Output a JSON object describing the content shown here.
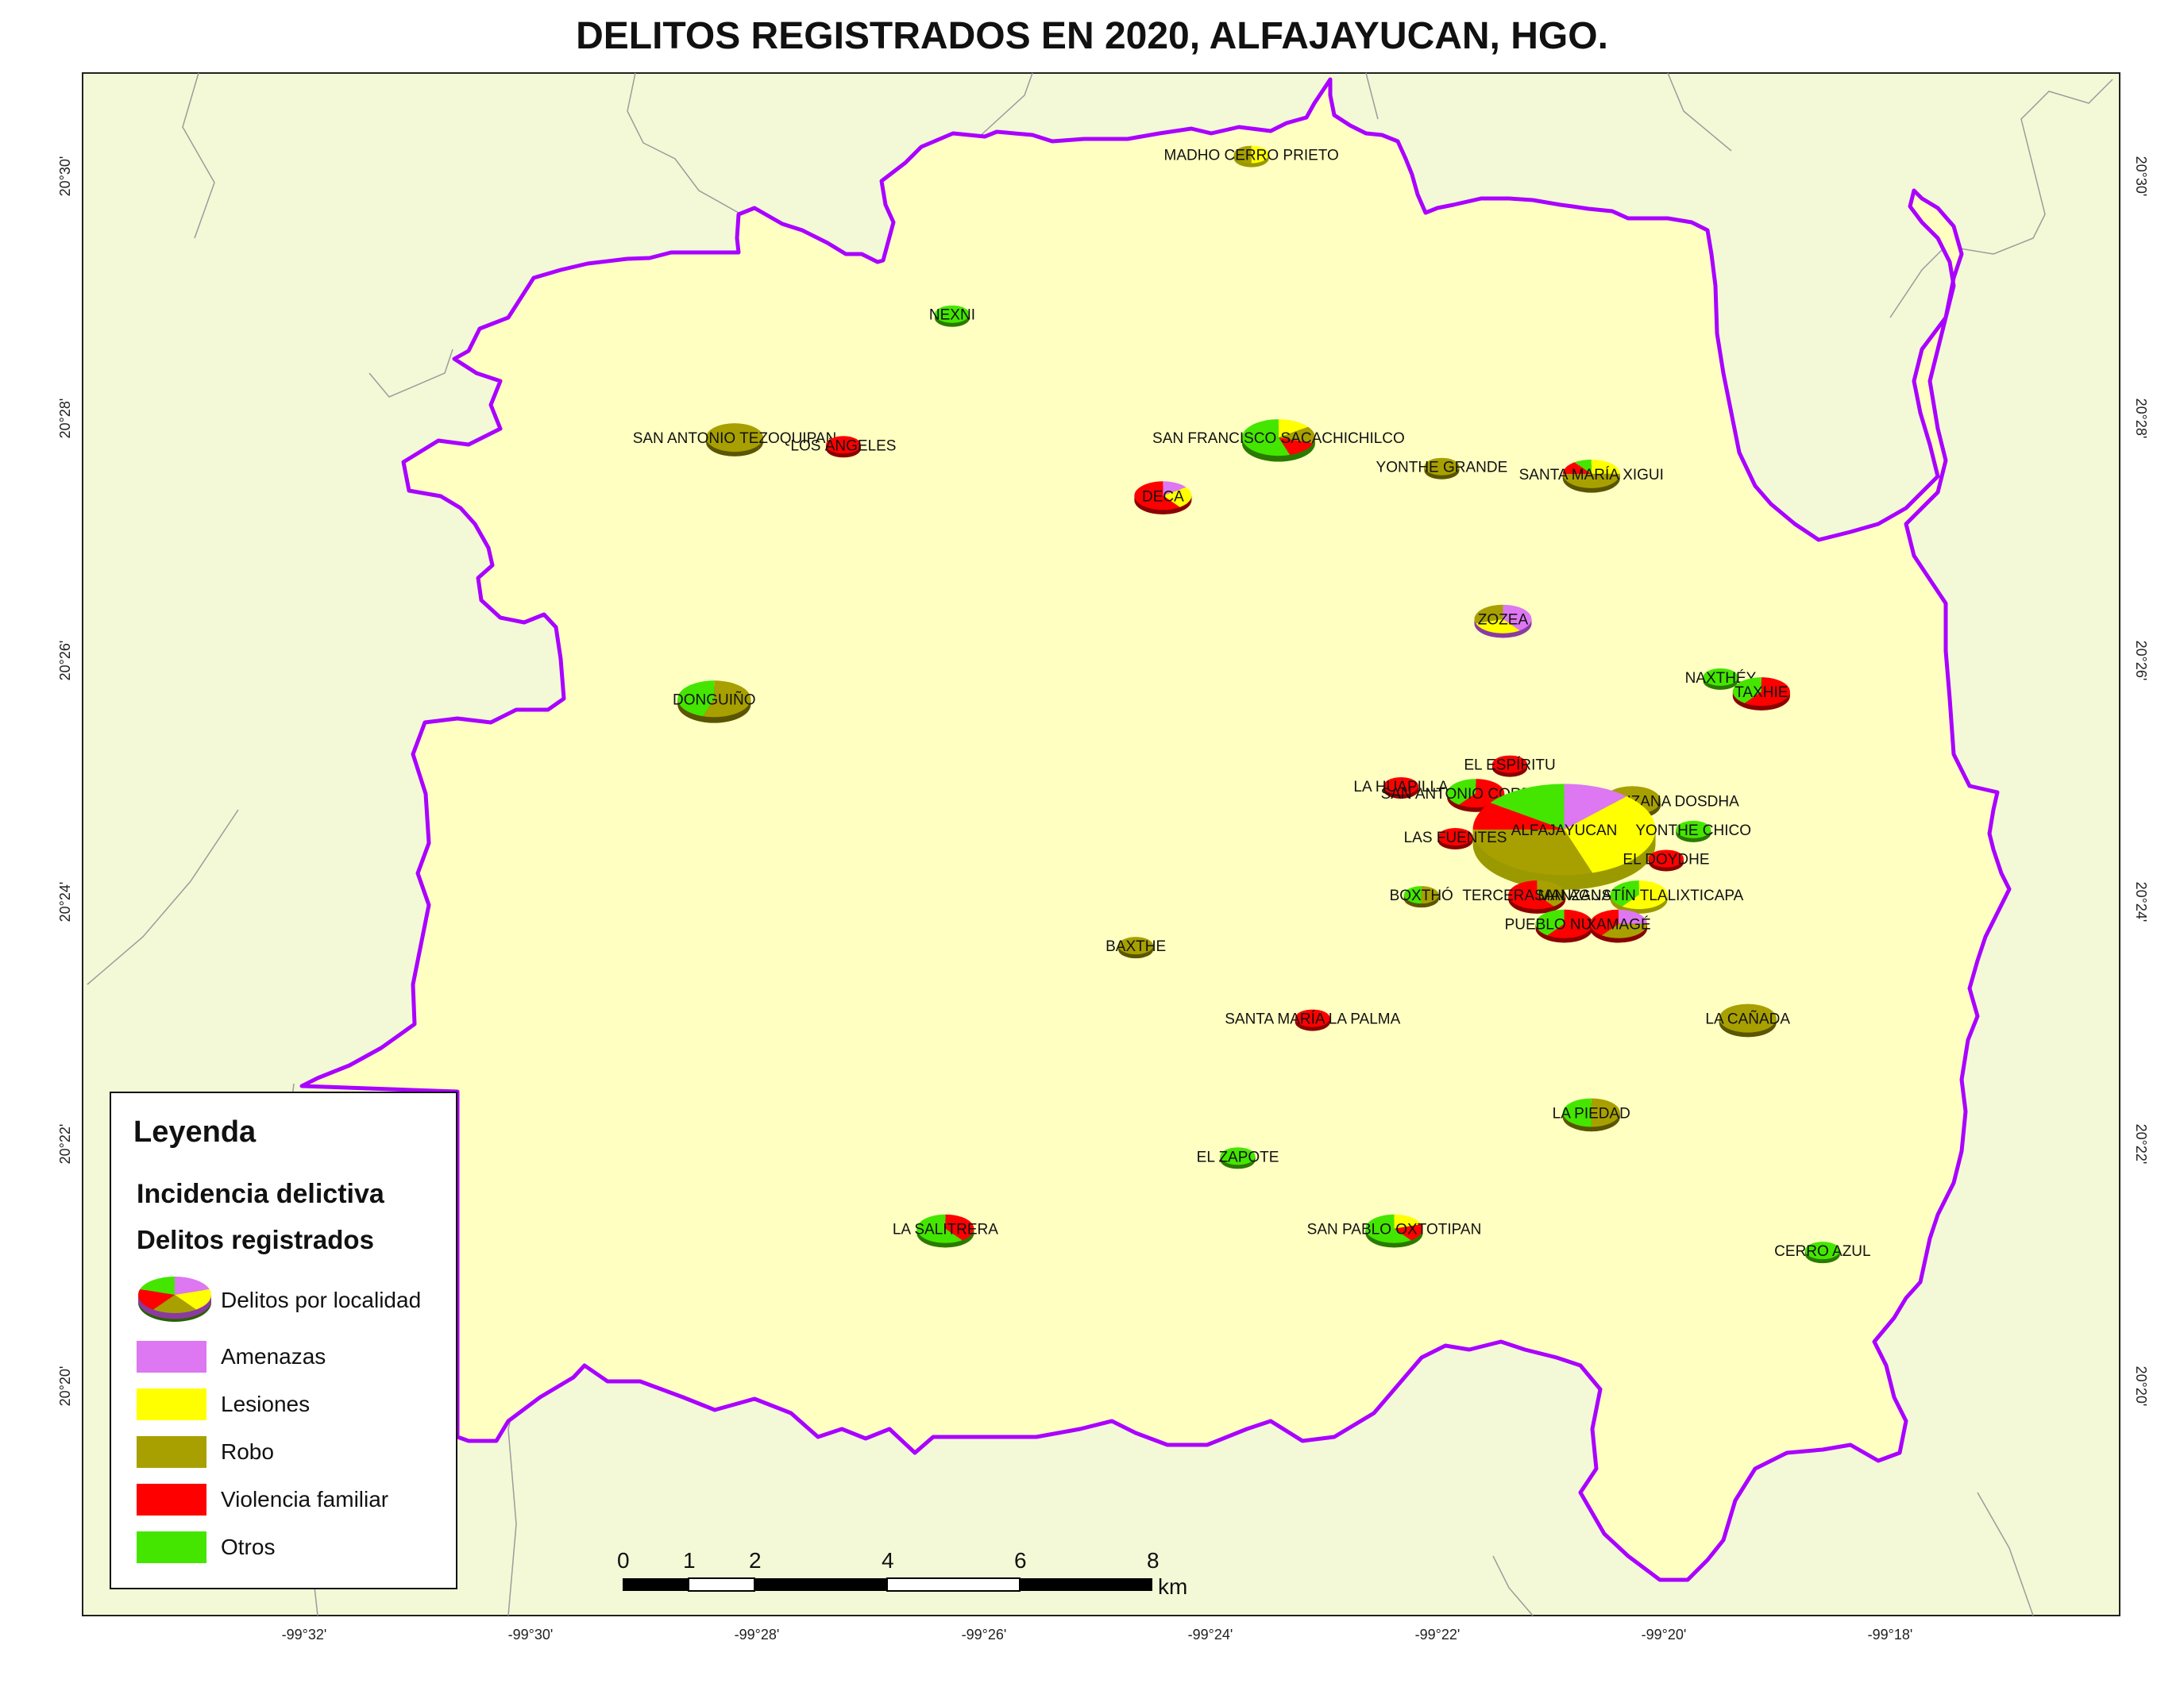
{
  "title": "DELITOS REGISTRADOS EN 2020, ALFAJAYUCAN, HGO.",
  "colors": {
    "amenazas": "#dd77f2",
    "lesiones": "#ffff00",
    "robo": "#a8a000",
    "violencia": "#ff0000",
    "otros": "#44e600",
    "municipio_fill": "#ffffc2",
    "outside_fill": "#f3f9d6",
    "border": "#aa00ff"
  },
  "coords": {
    "lon_labels": [
      "-99°32'",
      "-99°30'",
      "-99°28'",
      "-99°26'",
      "-99°24'",
      "-99°22'",
      "-99°20'",
      "-99°18'"
    ],
    "lat_labels": [
      "20°30'",
      "20°28'",
      "20°26'",
      "20°24'",
      "20°22'",
      "20°20'"
    ]
  },
  "localities": [
    {
      "name": "MADHO CERRO PRIETO",
      "lon": -99.394,
      "lat": 20.503,
      "size": 1,
      "shares": [
        0,
        0.5,
        0.5,
        0,
        0
      ]
    },
    {
      "name": "NEXNI",
      "lon": -99.438,
      "lat": 20.481,
      "size": 1,
      "shares": [
        0,
        0,
        0,
        0,
        1
      ]
    },
    {
      "name": "SAN FRANCISCO SACACHICHILCO",
      "lon": -99.39,
      "lat": 20.464,
      "size": 3,
      "shares": [
        0,
        0.15,
        0.15,
        0.15,
        0.55
      ]
    },
    {
      "name": "YONTHE GRANDE",
      "lon": -99.366,
      "lat": 20.46,
      "size": 1,
      "shares": [
        0,
        0,
        1,
        0,
        0
      ]
    },
    {
      "name": "SAN ANTONIO TEZOQUIPAN",
      "lon": -99.47,
      "lat": 20.464,
      "size": 2,
      "shares": [
        0,
        0,
        1,
        0,
        0
      ]
    },
    {
      "name": "LOS ÁNGELES",
      "lon": -99.454,
      "lat": 20.463,
      "size": 1,
      "shares": [
        0,
        0,
        0,
        1,
        0
      ]
    },
    {
      "name": "DECA",
      "lon": -99.407,
      "lat": 20.456,
      "size": 2,
      "shares": [
        0.15,
        0.25,
        0,
        0.6,
        0
      ]
    },
    {
      "name": "SANTA MARÍA XIGUI",
      "lon": -99.344,
      "lat": 20.459,
      "size": 2,
      "shares": [
        0,
        0.25,
        0.5,
        0.15,
        0.1
      ]
    },
    {
      "name": "ZOZEA",
      "lon": -99.357,
      "lat": 20.439,
      "size": 2,
      "shares": [
        0.4,
        0.3,
        0.3,
        0,
        0
      ]
    },
    {
      "name": "NAXTHÉY",
      "lon": -99.325,
      "lat": 20.431,
      "size": 1,
      "shares": [
        0,
        0,
        0,
        0,
        1
      ]
    },
    {
      "name": "DONGUIÑO",
      "lon": -99.473,
      "lat": 20.428,
      "size": 3,
      "shares": [
        0,
        0,
        0.55,
        0,
        0.45
      ]
    },
    {
      "name": "TAXHIE",
      "lon": -99.319,
      "lat": 20.429,
      "size": 2,
      "shares": [
        0,
        0,
        0,
        0.6,
        0.4
      ]
    },
    {
      "name": "EL ESPÍRITU",
      "lon": -99.356,
      "lat": 20.419,
      "size": 1,
      "shares": [
        0,
        0,
        0,
        1,
        0
      ]
    },
    {
      "name": "LA HUAPILLA",
      "lon": -99.372,
      "lat": 20.416,
      "size": 1,
      "shares": [
        0,
        0,
        0,
        1,
        0
      ]
    },
    {
      "name": "SAN ANTONIO CORRALES",
      "lon": -99.361,
      "lat": 20.415,
      "size": 2,
      "shares": [
        0,
        0,
        0,
        0.6,
        0.4
      ]
    },
    {
      "name": "PRIMERA MANZANA DOSDHA",
      "lon": -99.338,
      "lat": 20.414,
      "size": 2,
      "shares": [
        0,
        0,
        1,
        0,
        0
      ]
    },
    {
      "name": "ALFAJAYUCAN",
      "lon": -99.348,
      "lat": 20.41,
      "size": 10,
      "shares": [
        0.12,
        0.33,
        0.3,
        0.1,
        0.15
      ]
    },
    {
      "name": "LAS FUENTES",
      "lon": -99.364,
      "lat": 20.409,
      "size": 1,
      "shares": [
        0,
        0,
        0,
        1,
        0
      ]
    },
    {
      "name": "YONTHE CHICO",
      "lon": -99.329,
      "lat": 20.41,
      "size": 1,
      "shares": [
        0,
        0,
        0,
        0,
        1
      ]
    },
    {
      "name": "EL DOYDHE",
      "lon": -99.333,
      "lat": 20.406,
      "size": 1,
      "shares": [
        0,
        0,
        0,
        1,
        0
      ]
    },
    {
      "name": "BOXTHÓ",
      "lon": -99.369,
      "lat": 20.401,
      "size": 1,
      "shares": [
        0,
        0,
        0.5,
        0,
        0.5
      ]
    },
    {
      "name": "TERCERA MANZANA",
      "lon": -99.352,
      "lat": 20.401,
      "size": 2,
      "shares": [
        0,
        0,
        0.4,
        0.6,
        0
      ]
    },
    {
      "name": "SAN AGUSTÍN TLALIXTICAPA",
      "lon": -99.337,
      "lat": 20.401,
      "size": 2,
      "shares": [
        0,
        0.6,
        0,
        0,
        0.4
      ]
    },
    {
      "name": "PUEBLO NUEVO",
      "lon": -99.348,
      "lat": 20.397,
      "size": 2,
      "shares": [
        0,
        0,
        0,
        0.6,
        0.4
      ]
    },
    {
      "name": "XAMAGÉ",
      "lon": -99.34,
      "lat": 20.397,
      "size": 2,
      "shares": [
        0.25,
        0,
        0.35,
        0.4,
        0
      ]
    },
    {
      "name": "BAXTHE",
      "lon": -99.411,
      "lat": 20.394,
      "size": 1,
      "shares": [
        0,
        0,
        1,
        0,
        0
      ]
    },
    {
      "name": "SANTA MARÍA LA PALMA",
      "lon": -99.385,
      "lat": 20.384,
      "size": 1,
      "shares": [
        0,
        0,
        0,
        1,
        0
      ]
    },
    {
      "name": "LA CAÑADA",
      "lon": -99.321,
      "lat": 20.384,
      "size": 2,
      "shares": [
        0,
        0,
        1,
        0,
        0
      ]
    },
    {
      "name": "LA PIEDAD",
      "lon": -99.344,
      "lat": 20.371,
      "size": 2,
      "shares": [
        0,
        0,
        0.5,
        0,
        0.5
      ]
    },
    {
      "name": "EL ZAPOTE",
      "lon": -99.396,
      "lat": 20.365,
      "size": 1,
      "shares": [
        0,
        0,
        0,
        0,
        1
      ]
    },
    {
      "name": "LA SALITRERA",
      "lon": -99.439,
      "lat": 20.355,
      "size": 2,
      "shares": [
        0,
        0,
        0,
        0.4,
        0.6
      ]
    },
    {
      "name": "SAN PABLO OXTOTIPAN",
      "lon": -99.373,
      "lat": 20.355,
      "size": 2,
      "shares": [
        0,
        0.2,
        0,
        0.2,
        0.6
      ]
    },
    {
      "name": "CERRO AZUL",
      "lon": -99.31,
      "lat": 20.352,
      "size": 1,
      "shares": [
        0,
        0,
        0,
        0,
        1
      ]
    }
  ],
  "legend": {
    "title": "Leyenda",
    "subtitle1": "Incidencia delictiva",
    "subtitle2": "Delitos registrados",
    "pie_label": "Delitos por localidad",
    "items": [
      {
        "label": "Amenazas",
        "color": "#dd77f2"
      },
      {
        "label": "Lesiones",
        "color": "#ffff00"
      },
      {
        "label": "Robo",
        "color": "#a8a000"
      },
      {
        "label": "Violencia familiar",
        "color": "#ff0000"
      },
      {
        "label": "Otros",
        "color": "#44e600"
      }
    ]
  },
  "scale_bar": {
    "labels": [
      "0",
      "1",
      "2",
      "4",
      "6",
      "8"
    ],
    "unit": "km"
  }
}
